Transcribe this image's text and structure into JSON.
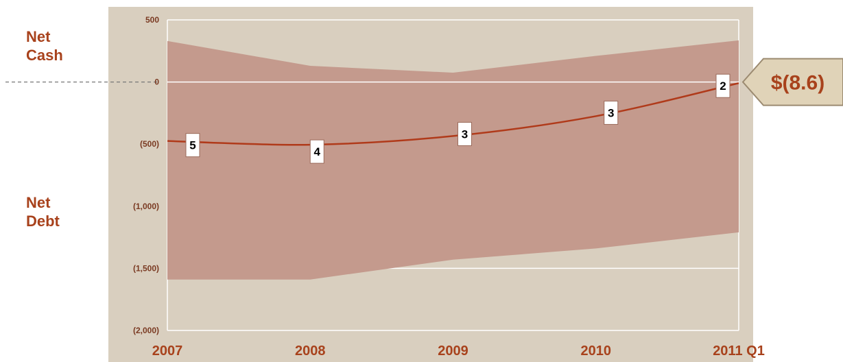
{
  "labels": {
    "net_cash": "Net\nCash",
    "net_debt": "Net\nDebt"
  },
  "callout": {
    "text": "$(8.6)"
  },
  "colors": {
    "plot_background": "#d9cfbf",
    "band_fill": "#c49a8d",
    "line": "#b03a1a",
    "accent_text": "#a8421c",
    "callout_fill": "#e0d3b8"
  },
  "chart_data": {
    "type": "line",
    "categories": [
      "2007",
      "2008",
      "2009",
      "2010",
      "2011 Q1"
    ],
    "series": [
      {
        "values": [
          -475,
          -505,
          -435,
          -275,
          -9
        ]
      }
    ],
    "point_labels": [
      "5",
      "4",
      "3",
      "3",
      "2"
    ],
    "band": {
      "upper": [
        330,
        130,
        75,
        210,
        335
      ],
      "lower": [
        -1590,
        -1590,
        -1430,
        -1340,
        -1210
      ]
    },
    "y_ticks": [
      500,
      0,
      -500,
      -1000,
      -1500,
      -2000
    ],
    "y_tick_labels": [
      "500",
      "0",
      "(500)",
      "(1,000)",
      "(1,500)",
      "(2,000)"
    ],
    "ylim": [
      -2000,
      500
    ],
    "reference_line": 0,
    "grid": true
  }
}
